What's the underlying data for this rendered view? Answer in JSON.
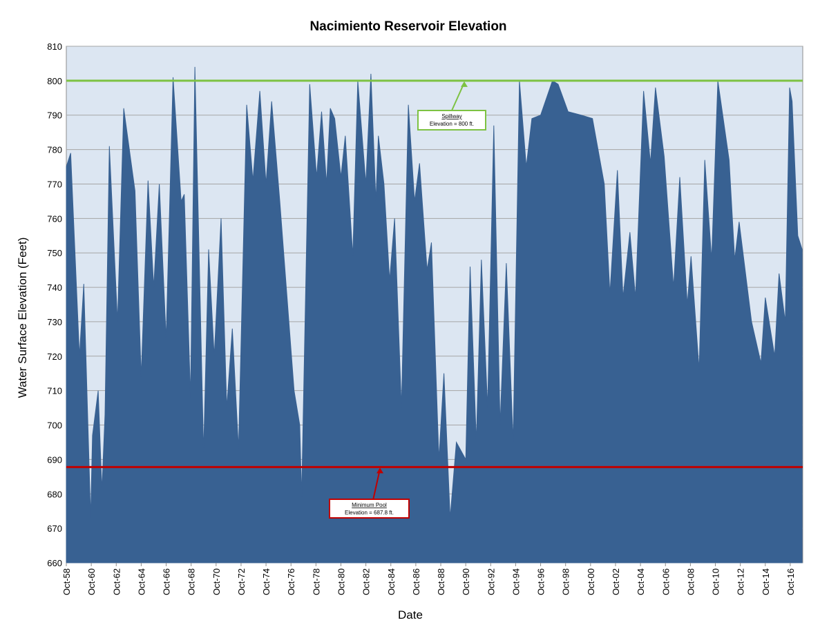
{
  "chart_data": {
    "type": "area",
    "title": "Nacimiento Reservoir Elevation",
    "xlabel": "Date",
    "ylabel": "Water Surface Elevation (Feet)",
    "xlim": [
      1958.75,
      2017.75
    ],
    "ylim": [
      660,
      810
    ],
    "yticks": [
      660,
      670,
      680,
      690,
      700,
      710,
      720,
      730,
      740,
      750,
      760,
      770,
      780,
      790,
      800,
      810
    ],
    "xticks": [
      {
        "value": 1958.75,
        "label": "Oct-58"
      },
      {
        "value": 1960.75,
        "label": "Oct-60"
      },
      {
        "value": 1962.75,
        "label": "Oct-62"
      },
      {
        "value": 1964.75,
        "label": "Oct-64"
      },
      {
        "value": 1966.75,
        "label": "Oct-66"
      },
      {
        "value": 1968.75,
        "label": "Oct-68"
      },
      {
        "value": 1970.75,
        "label": "Oct-70"
      },
      {
        "value": 1972.75,
        "label": "Oct-72"
      },
      {
        "value": 1974.75,
        "label": "Oct-74"
      },
      {
        "value": 1976.75,
        "label": "Oct-76"
      },
      {
        "value": 1978.75,
        "label": "Oct-78"
      },
      {
        "value": 1980.75,
        "label": "Oct-80"
      },
      {
        "value": 1982.75,
        "label": "Oct-82"
      },
      {
        "value": 1984.75,
        "label": "Oct-84"
      },
      {
        "value": 1986.75,
        "label": "Oct-86"
      },
      {
        "value": 1988.75,
        "label": "Oct-88"
      },
      {
        "value": 1990.75,
        "label": "Oct-90"
      },
      {
        "value": 1992.75,
        "label": "Oct-92"
      },
      {
        "value": 1994.75,
        "label": "Oct-94"
      },
      {
        "value": 1996.75,
        "label": "Oct-96"
      },
      {
        "value": 1998.75,
        "label": "Oct-98"
      },
      {
        "value": 2000.75,
        "label": "Oct-00"
      },
      {
        "value": 2002.75,
        "label": "Oct-02"
      },
      {
        "value": 2004.75,
        "label": "Oct-04"
      },
      {
        "value": 2006.75,
        "label": "Oct-06"
      },
      {
        "value": 2008.75,
        "label": "Oct-08"
      },
      {
        "value": 2010.75,
        "label": "Oct-10"
      },
      {
        "value": 2012.75,
        "label": "Oct-12"
      },
      {
        "value": 2014.75,
        "label": "Oct-14"
      },
      {
        "value": 2016.75,
        "label": "Oct-16"
      }
    ],
    "grid": true,
    "background": "#dce6f2",
    "x": [
      1958.75,
      1959.1,
      1959.8,
      1960.15,
      1960.7,
      1960.85,
      1961.3,
      1961.6,
      1961.85,
      1962.2,
      1962.85,
      1963.35,
      1964.25,
      1964.75,
      1965.3,
      1965.75,
      1966.2,
      1966.75,
      1967.3,
      1967.95,
      1968.2,
      1968.7,
      1969.05,
      1969.75,
      1970.15,
      1970.6,
      1971.15,
      1971.6,
      1972.05,
      1972.55,
      1973.2,
      1973.7,
      1974.25,
      1974.75,
      1975.2,
      1975.85,
      1977.0,
      1977.45,
      1977.6,
      1978.25,
      1978.8,
      1979.2,
      1979.6,
      1979.9,
      1980.25,
      1980.75,
      1981.1,
      1981.7,
      1982.1,
      1982.75,
      1983.15,
      1983.55,
      1983.75,
      1984.2,
      1984.65,
      1985.05,
      1985.6,
      1986.15,
      1986.65,
      1987.05,
      1987.65,
      1988.0,
      1988.6,
      1989.0,
      1989.5,
      1990.0,
      1990.75,
      1991.1,
      1991.6,
      1992.0,
      1992.5,
      1993.0,
      1993.5,
      1994.0,
      1994.55,
      1995.05,
      1995.6,
      1996.05,
      1996.75,
      1997.7,
      1998.15,
      1998.95,
      2000.0,
      2000.9,
      2001.85,
      2002.3,
      2002.9,
      2003.35,
      2003.9,
      2004.35,
      2005.0,
      2005.55,
      2005.95,
      2006.65,
      2007.4,
      2007.9,
      2008.5,
      2008.8,
      2009.45,
      2009.9,
      2010.45,
      2010.95,
      2011.85,
      2012.3,
      2012.65,
      2013.65,
      2014.4,
      2014.75,
      2015.5,
      2015.85,
      2016.35,
      2016.7,
      2016.9,
      2017.35,
      2017.7
    ],
    "series": [
      {
        "name": "Elevation",
        "color": "#386192",
        "values": [
          775,
          779,
          720,
          741,
          673,
          697,
          710,
          681,
          703,
          781,
          730,
          792,
          768,
          714,
          771,
          740,
          770,
          725,
          801,
          765,
          767,
          708,
          804,
          692,
          751,
          720,
          760,
          705,
          728,
          693,
          793,
          771,
          797,
          770,
          794,
          765,
          710,
          700,
          679,
          799,
          772,
          791,
          770,
          792,
          789,
          772,
          784,
          749,
          800,
          770,
          802,
          765,
          784,
          770,
          742,
          760,
          705,
          793,
          765,
          776,
          745,
          753,
          690,
          715,
          673,
          695,
          690,
          746,
          695,
          748,
          705,
          787,
          700,
          747,
          695,
          800,
          775,
          789,
          790,
          800,
          799,
          791,
          790,
          789,
          770,
          738,
          774,
          737,
          756,
          737,
          797,
          776,
          798,
          778,
          740,
          772,
          735,
          749,
          716,
          777,
          748,
          800,
          777,
          748,
          759,
          730,
          718,
          737,
          720,
          744,
          730,
          798,
          794,
          755,
          751
        ]
      }
    ],
    "reference_lines": [
      {
        "value": 800,
        "color": "#7dc242",
        "label": "Spillway",
        "sublabel": "Elevation = 800 ft."
      },
      {
        "value": 687.8,
        "color": "#c00000",
        "label": "Minimum Pool",
        "sublabel": "Elevation = 687.8 ft."
      }
    ]
  }
}
